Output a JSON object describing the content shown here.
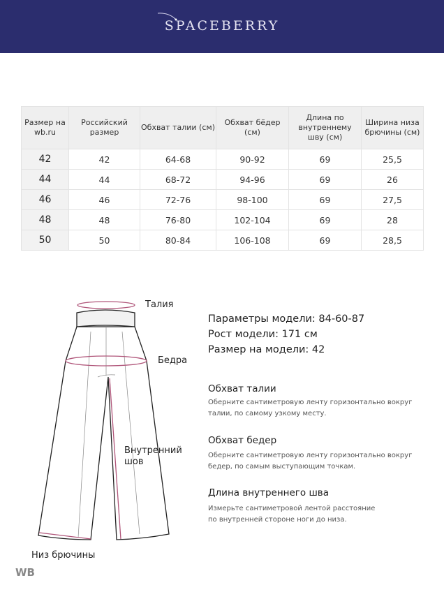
{
  "brand": "SPACEBERRY",
  "table": {
    "headers": [
      "Размер на wb.ru",
      "Российский размер",
      "Обхват талии (см)",
      "Обхват бёдер (см)",
      "Длина по внутреннему шву (см)",
      "Ширина низа брючины (см)"
    ],
    "rows": [
      [
        "42",
        "42",
        "64-68",
        "90-92",
        "69",
        "25,5"
      ],
      [
        "44",
        "44",
        "68-72",
        "94-96",
        "69",
        "26"
      ],
      [
        "46",
        "46",
        "72-76",
        "98-100",
        "69",
        "27,5"
      ],
      [
        "48",
        "48",
        "76-80",
        "102-104",
        "69",
        "28"
      ],
      [
        "50",
        "50",
        "80-84",
        "106-108",
        "69",
        "28,5"
      ]
    ]
  },
  "diagram": {
    "waist": "Талия",
    "hips": "Бедра",
    "inseam_1": "Внутренний",
    "inseam_2": "шов",
    "hem": "Низ брючины"
  },
  "model": {
    "params": "Параметры модели: 84-60-87",
    "height": "Рост модели: 171 см",
    "size": "Размер на модели: 42"
  },
  "guide": [
    {
      "title": "Обхват талии",
      "line1": "Оберните сантиметровую ленту горизонтально вокруг",
      "line2": "талии, по самому узкому месту."
    },
    {
      "title": "Обхват бедер",
      "line1": "Оберните сантиметровую ленту горизонтально вокруг",
      "line2": "бедер, по самым выступающим точкам."
    },
    {
      "title": "Длина внутреннего шва",
      "line1": "Измерьте сантиметровой лентой расстояние",
      "line2": "по внутренней стороне ноги до низа."
    }
  ],
  "watermark": "WB",
  "colors": {
    "banner": "#2b2d6e",
    "measure": "#b0567a"
  }
}
